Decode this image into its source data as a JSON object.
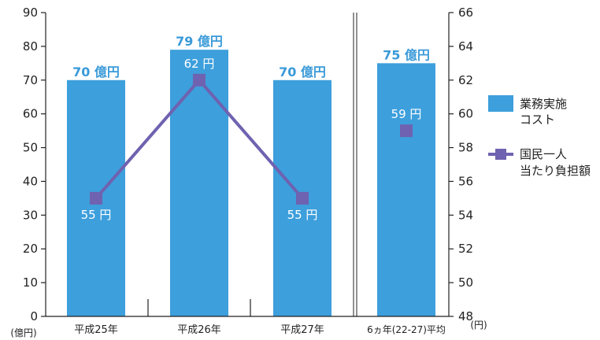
{
  "chart_data": {
    "type": "bar",
    "categories": [
      "平成25年",
      "平成26年",
      "平成27年",
      "6ヵ年(22-27)平均"
    ],
    "series": [
      {
        "name": "業務実施コスト",
        "axis": "left",
        "values": [
          70,
          79,
          70,
          75
        ],
        "labels": [
          "70 億円",
          "79 億円",
          "70 億円",
          "75 億円"
        ],
        "color": "#3d9fdc"
      },
      {
        "name": "国民一人当たり負担額",
        "axis": "right",
        "values": [
          55,
          62,
          55,
          59
        ],
        "labels": [
          "55 円",
          "62 円",
          "55 円",
          "59 円"
        ],
        "color": "#6f62b0"
      }
    ],
    "left_axis": {
      "unit": "(億円)",
      "ylim": [
        0,
        90
      ],
      "ticks": [
        "0",
        "10",
        "20",
        "30",
        "40",
        "50",
        "60",
        "70",
        "80",
        "90"
      ]
    },
    "right_axis": {
      "unit": "(円)",
      "ylim": [
        48,
        66
      ],
      "ticks": [
        "48",
        "50",
        "52",
        "54",
        "56",
        "58",
        "60",
        "62",
        "64",
        "66"
      ]
    },
    "legend": {
      "placement": "right",
      "items": [
        {
          "lines": [
            "業務実施",
            "コスト"
          ]
        },
        {
          "lines": [
            "国民一人",
            "当たり負担額"
          ]
        }
      ]
    },
    "line_connects_first_n": 3,
    "grid": false
  }
}
